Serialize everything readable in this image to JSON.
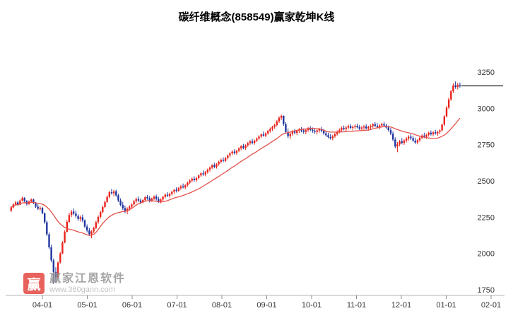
{
  "header": {
    "title": "碳纤维概念(858549)赢家乾坤K线"
  },
  "watermark": {
    "logo_text": "赢",
    "name": "赢家江恩软件",
    "url": "www.360gann.com"
  },
  "chart_data": {
    "type": "candlestick",
    "title": "碳纤维概念(858549)赢家乾坤K线",
    "ylabel": "",
    "xlabel": "",
    "y_ticks": [
      1750,
      2000,
      2250,
      2500,
      2750,
      3000,
      3250
    ],
    "ylim": [
      1700,
      3330
    ],
    "x_ticks": [
      "04-01",
      "05-01",
      "06-01",
      "07-01",
      "08-01",
      "09-01",
      "10-01",
      "11-01",
      "12-01",
      "01-01",
      "02-01"
    ],
    "legend": [],
    "grid": false,
    "ma_window": 20,
    "colors": {
      "up": "#e8231d",
      "down": "#1f35a0",
      "ma": "#e2504a",
      "flat_line": "#222222"
    },
    "candles": [
      [
        2295,
        2325,
        2285,
        2318
      ],
      [
        2318,
        2345,
        2310,
        2338
      ],
      [
        2338,
        2362,
        2330,
        2352
      ],
      [
        2352,
        2360,
        2328,
        2336
      ],
      [
        2336,
        2372,
        2332,
        2365
      ],
      [
        2365,
        2392,
        2358,
        2382
      ],
      [
        2382,
        2388,
        2352,
        2360
      ],
      [
        2360,
        2368,
        2330,
        2340
      ],
      [
        2340,
        2365,
        2335,
        2358
      ],
      [
        2358,
        2380,
        2350,
        2372
      ],
      [
        2372,
        2378,
        2340,
        2348
      ],
      [
        2348,
        2355,
        2315,
        2322
      ],
      [
        2322,
        2340,
        2300,
        2308
      ],
      [
        2308,
        2325,
        2295,
        2315
      ],
      [
        2315,
        2320,
        2270,
        2278
      ],
      [
        2278,
        2282,
        2205,
        2215
      ],
      [
        2215,
        2228,
        2120,
        2132
      ],
      [
        2132,
        2145,
        2030,
        2042
      ],
      [
        2042,
        2060,
        1940,
        1952
      ],
      [
        1952,
        1965,
        1790,
        1872
      ],
      [
        1872,
        1905,
        1795,
        1835
      ],
      [
        1835,
        1945,
        1825,
        1938
      ],
      [
        1938,
        2010,
        1930,
        2000
      ],
      [
        2000,
        2085,
        1995,
        2075
      ],
      [
        2075,
        2160,
        2070,
        2150
      ],
      [
        2150,
        2230,
        2145,
        2218
      ],
      [
        2218,
        2280,
        2210,
        2265
      ],
      [
        2265,
        2300,
        2250,
        2288
      ],
      [
        2288,
        2310,
        2265,
        2275
      ],
      [
        2275,
        2295,
        2245,
        2258
      ],
      [
        2258,
        2270,
        2225,
        2238
      ],
      [
        2238,
        2262,
        2220,
        2250
      ],
      [
        2250,
        2268,
        2215,
        2228
      ],
      [
        2228,
        2235,
        2175,
        2185
      ],
      [
        2185,
        2200,
        2145,
        2158
      ],
      [
        2158,
        2175,
        2120,
        2132
      ],
      [
        2132,
        2160,
        2105,
        2152
      ],
      [
        2152,
        2185,
        2140,
        2175
      ],
      [
        2175,
        2225,
        2168,
        2215
      ],
      [
        2215,
        2262,
        2205,
        2252
      ],
      [
        2252,
        2295,
        2240,
        2285
      ],
      [
        2285,
        2330,
        2278,
        2320
      ],
      [
        2320,
        2365,
        2312,
        2355
      ],
      [
        2355,
        2400,
        2348,
        2390
      ],
      [
        2390,
        2432,
        2380,
        2422
      ],
      [
        2422,
        2445,
        2405,
        2415
      ],
      [
        2415,
        2438,
        2395,
        2428
      ],
      [
        2428,
        2440,
        2390,
        2400
      ],
      [
        2400,
        2412,
        2355,
        2365
      ],
      [
        2365,
        2380,
        2325,
        2335
      ],
      [
        2335,
        2355,
        2300,
        2312
      ],
      [
        2312,
        2330,
        2278,
        2290
      ],
      [
        2290,
        2318,
        2270,
        2308
      ],
      [
        2308,
        2332,
        2295,
        2322
      ],
      [
        2322,
        2345,
        2310,
        2338
      ],
      [
        2338,
        2368,
        2330,
        2360
      ],
      [
        2360,
        2385,
        2348,
        2375
      ],
      [
        2375,
        2392,
        2355,
        2365
      ],
      [
        2365,
        2380,
        2340,
        2352
      ],
      [
        2352,
        2375,
        2345,
        2368
      ],
      [
        2368,
        2395,
        2360,
        2388
      ],
      [
        2388,
        2402,
        2370,
        2380
      ],
      [
        2380,
        2395,
        2352,
        2362
      ],
      [
        2362,
        2385,
        2355,
        2378
      ],
      [
        2378,
        2400,
        2368,
        2392
      ],
      [
        2392,
        2405,
        2365,
        2375
      ],
      [
        2375,
        2390,
        2348,
        2358
      ],
      [
        2358,
        2380,
        2345,
        2372
      ],
      [
        2372,
        2398,
        2362,
        2390
      ],
      [
        2390,
        2415,
        2380,
        2405
      ],
      [
        2405,
        2422,
        2388,
        2398
      ],
      [
        2398,
        2418,
        2385,
        2410
      ],
      [
        2410,
        2432,
        2400,
        2425
      ],
      [
        2425,
        2445,
        2412,
        2438
      ],
      [
        2438,
        2455,
        2420,
        2432
      ],
      [
        2432,
        2458,
        2425,
        2450
      ],
      [
        2450,
        2472,
        2438,
        2462
      ],
      [
        2462,
        2482,
        2448,
        2455
      ],
      [
        2455,
        2478,
        2442,
        2470
      ],
      [
        2470,
        2495,
        2460,
        2488
      ],
      [
        2488,
        2512,
        2478,
        2502
      ],
      [
        2502,
        2525,
        2490,
        2515
      ],
      [
        2515,
        2532,
        2495,
        2505
      ],
      [
        2505,
        2528,
        2492,
        2520
      ],
      [
        2520,
        2545,
        2510,
        2538
      ],
      [
        2538,
        2560,
        2528,
        2552
      ],
      [
        2552,
        2572,
        2535,
        2545
      ],
      [
        2545,
        2568,
        2532,
        2560
      ],
      [
        2560,
        2585,
        2550,
        2578
      ],
      [
        2578,
        2600,
        2565,
        2592
      ],
      [
        2592,
        2615,
        2582,
        2608
      ],
      [
        2608,
        2625,
        2588,
        2598
      ],
      [
        2598,
        2622,
        2585,
        2615
      ],
      [
        2615,
        2640,
        2605,
        2632
      ],
      [
        2632,
        2655,
        2620,
        2645
      ],
      [
        2645,
        2662,
        2628,
        2638
      ],
      [
        2638,
        2665,
        2630,
        2658
      ],
      [
        2658,
        2682,
        2648,
        2675
      ],
      [
        2675,
        2698,
        2662,
        2690
      ],
      [
        2690,
        2712,
        2678,
        2702
      ],
      [
        2702,
        2718,
        2682,
        2692
      ],
      [
        2692,
        2715,
        2680,
        2708
      ],
      [
        2708,
        2732,
        2698,
        2725
      ],
      [
        2725,
        2748,
        2712,
        2738
      ],
      [
        2738,
        2755,
        2718,
        2728
      ],
      [
        2728,
        2752,
        2715,
        2745
      ],
      [
        2745,
        2768,
        2735,
        2760
      ],
      [
        2760,
        2782,
        2748,
        2772
      ],
      [
        2772,
        2790,
        2752,
        2762
      ],
      [
        2762,
        2785,
        2750,
        2778
      ],
      [
        2778,
        2800,
        2768,
        2792
      ],
      [
        2792,
        2815,
        2782,
        2806
      ],
      [
        2806,
        2828,
        2795,
        2820
      ],
      [
        2820,
        2840,
        2805,
        2812
      ],
      [
        2812,
        2835,
        2800,
        2828
      ],
      [
        2828,
        2852,
        2818,
        2845
      ],
      [
        2845,
        2868,
        2832,
        2858
      ],
      [
        2858,
        2880,
        2845,
        2872
      ],
      [
        2872,
        2895,
        2860,
        2885
      ],
      [
        2885,
        2920,
        2875,
        2910
      ],
      [
        2910,
        2945,
        2900,
        2935
      ],
      [
        2935,
        2958,
        2920,
        2948
      ],
      [
        2948,
        2952,
        2880,
        2892
      ],
      [
        2892,
        2905,
        2825,
        2838
      ],
      [
        2838,
        2862,
        2795,
        2808
      ],
      [
        2808,
        2835,
        2788,
        2825
      ],
      [
        2825,
        2850,
        2812,
        2840
      ],
      [
        2840,
        2858,
        2820,
        2832
      ],
      [
        2832,
        2852,
        2815,
        2845
      ],
      [
        2845,
        2865,
        2830,
        2855
      ],
      [
        2855,
        2870,
        2835,
        2848
      ],
      [
        2848,
        2862,
        2825,
        2838
      ],
      [
        2838,
        2858,
        2822,
        2850
      ],
      [
        2850,
        2872,
        2838,
        2862
      ],
      [
        2862,
        2878,
        2842,
        2852
      ],
      [
        2852,
        2868,
        2832,
        2845
      ],
      [
        2845,
        2860,
        2825,
        2838
      ],
      [
        2838,
        2855,
        2820,
        2848
      ],
      [
        2848,
        2865,
        2832,
        2858
      ],
      [
        2858,
        2872,
        2835,
        2845
      ],
      [
        2845,
        2858,
        2818,
        2828
      ],
      [
        2828,
        2845,
        2805,
        2815
      ],
      [
        2815,
        2832,
        2792,
        2802
      ],
      [
        2802,
        2822,
        2785,
        2795
      ],
      [
        2795,
        2818,
        2780,
        2808
      ],
      [
        2808,
        2832,
        2798,
        2822
      ],
      [
        2822,
        2848,
        2812,
        2838
      ],
      [
        2838,
        2862,
        2828,
        2852
      ],
      [
        2852,
        2875,
        2840,
        2865
      ],
      [
        2865,
        2882,
        2848,
        2858
      ],
      [
        2858,
        2878,
        2842,
        2868
      ],
      [
        2868,
        2888,
        2855,
        2878
      ],
      [
        2878,
        2892,
        2858,
        2865
      ],
      [
        2865,
        2882,
        2848,
        2872
      ],
      [
        2872,
        2890,
        2858,
        2880
      ],
      [
        2880,
        2895,
        2862,
        2870
      ],
      [
        2870,
        2885,
        2850,
        2860
      ],
      [
        2860,
        2878,
        2845,
        2868
      ],
      [
        2868,
        2885,
        2852,
        2875
      ],
      [
        2875,
        2890,
        2855,
        2862
      ],
      [
        2862,
        2880,
        2845,
        2870
      ],
      [
        2870,
        2888,
        2852,
        2878
      ],
      [
        2878,
        2898,
        2865,
        2890
      ],
      [
        2890,
        2905,
        2870,
        2880
      ],
      [
        2880,
        2898,
        2862,
        2872
      ],
      [
        2872,
        2890,
        2855,
        2882
      ],
      [
        2882,
        2900,
        2868,
        2892
      ],
      [
        2892,
        2908,
        2872,
        2882
      ],
      [
        2882,
        2895,
        2858,
        2868
      ],
      [
        2868,
        2882,
        2840,
        2850
      ],
      [
        2850,
        2865,
        2815,
        2825
      ],
      [
        2825,
        2840,
        2772,
        2785
      ],
      [
        2785,
        2800,
        2725,
        2738
      ],
      [
        2738,
        2768,
        2698,
        2752
      ],
      [
        2752,
        2782,
        2738,
        2772
      ],
      [
        2772,
        2795,
        2752,
        2762
      ],
      [
        2762,
        2788,
        2748,
        2778
      ],
      [
        2778,
        2802,
        2765,
        2792
      ],
      [
        2792,
        2815,
        2778,
        2805
      ],
      [
        2805,
        2822,
        2782,
        2795
      ],
      [
        2795,
        2812,
        2768,
        2778
      ],
      [
        2778,
        2798,
        2755,
        2765
      ],
      [
        2765,
        2788,
        2752,
        2780
      ],
      [
        2780,
        2805,
        2770,
        2798
      ],
      [
        2798,
        2822,
        2788,
        2812
      ],
      [
        2812,
        2832,
        2795,
        2805
      ],
      [
        2805,
        2825,
        2790,
        2818
      ],
      [
        2818,
        2840,
        2805,
        2832
      ],
      [
        2832,
        2848,
        2812,
        2822
      ],
      [
        2822,
        2842,
        2808,
        2835
      ],
      [
        2835,
        2852,
        2818,
        2828
      ],
      [
        2828,
        2845,
        2810,
        2838
      ],
      [
        2838,
        2855,
        2822,
        2848
      ],
      [
        2848,
        2895,
        2840,
        2888
      ],
      [
        2888,
        2952,
        2880,
        2945
      ],
      [
        2945,
        3015,
        2938,
        3005
      ],
      [
        3005,
        3075,
        2995,
        3062
      ],
      [
        3062,
        3128,
        3052,
        3118
      ],
      [
        3118,
        3172,
        3105,
        3158
      ],
      [
        3158,
        3185,
        3135,
        3148
      ],
      [
        3148,
        3175,
        3130,
        3162
      ],
      [
        3162,
        3178,
        3142,
        3155
      ]
    ]
  }
}
